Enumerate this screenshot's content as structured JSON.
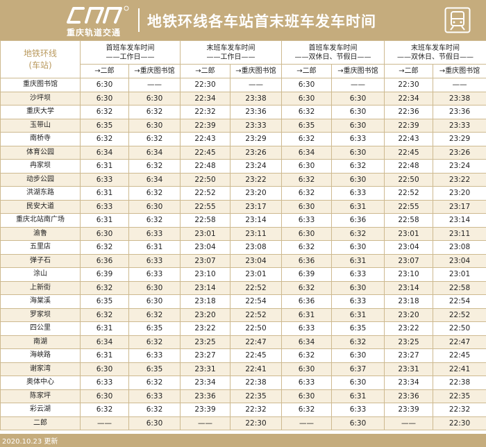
{
  "header": {
    "logo_text": "重庆轨道交通",
    "logo_icon": "cr-rail-logo",
    "title": "地铁环线各车站首末班车发车时间",
    "metro_icon": "metro-train-icon"
  },
  "table": {
    "corner_line1": "地铁环线",
    "corner_line2": "(车站)",
    "groups": [
      {
        "line1": "首班车发车时间",
        "line2": "——工作日——"
      },
      {
        "line1": "末班车发车时间",
        "line2": "——工作日——"
      },
      {
        "line1": "首班车发车时间",
        "line2": "——双休日、节假日——"
      },
      {
        "line1": "末班车发车时间",
        "line2": "——双休日、节假日——"
      }
    ],
    "dir_a": "→二郎",
    "dir_b": "→重庆图书馆",
    "rows": [
      [
        "重庆图书馆",
        "6:30",
        "——",
        "22:30",
        "——",
        "6:30",
        "——",
        "22:30",
        "——"
      ],
      [
        "沙坪坝",
        "6:30",
        "6:30",
        "22:34",
        "23:38",
        "6:30",
        "6:30",
        "22:34",
        "23:38"
      ],
      [
        "重庆大学",
        "6:32",
        "6:32",
        "22:32",
        "23:36",
        "6:32",
        "6:30",
        "22:36",
        "23:36"
      ],
      [
        "玉带山",
        "6:35",
        "6:30",
        "22:39",
        "23:33",
        "6:35",
        "6:30",
        "22:39",
        "23:33"
      ],
      [
        "南桥寺",
        "6:32",
        "6:32",
        "22:43",
        "23:29",
        "6:32",
        "6:33",
        "22:43",
        "23:29"
      ],
      [
        "体育公园",
        "6:34",
        "6:34",
        "22:45",
        "23:26",
        "6:34",
        "6:30",
        "22:45",
        "23:26"
      ],
      [
        "冉家坝",
        "6:31",
        "6:32",
        "22:48",
        "23:24",
        "6:30",
        "6:32",
        "22:48",
        "23:24"
      ],
      [
        "动步公园",
        "6:33",
        "6:34",
        "22:50",
        "23:22",
        "6:32",
        "6:30",
        "22:50",
        "23:22"
      ],
      [
        "洪湖东路",
        "6:31",
        "6:32",
        "22:52",
        "23:20",
        "6:32",
        "6:33",
        "22:52",
        "23:20"
      ],
      [
        "民安大道",
        "6:33",
        "6:30",
        "22:55",
        "23:17",
        "6:30",
        "6:31",
        "22:55",
        "23:17"
      ],
      [
        "重庆北站南广场",
        "6:31",
        "6:32",
        "22:58",
        "23:14",
        "6:33",
        "6:36",
        "22:58",
        "23:14"
      ],
      [
        "渝鲁",
        "6:30",
        "6:33",
        "23:01",
        "23:11",
        "6:30",
        "6:32",
        "23:01",
        "23:11"
      ],
      [
        "五里店",
        "6:32",
        "6:31",
        "23:04",
        "23:08",
        "6:32",
        "6:30",
        "23:04",
        "23:08"
      ],
      [
        "弹子石",
        "6:36",
        "6:33",
        "23:07",
        "23:04",
        "6:36",
        "6:31",
        "23:07",
        "23:04"
      ],
      [
        "涂山",
        "6:39",
        "6:33",
        "23:10",
        "23:01",
        "6:39",
        "6:33",
        "23:10",
        "23:01"
      ],
      [
        "上新街",
        "6:32",
        "6:30",
        "23:14",
        "22:52",
        "6:32",
        "6:30",
        "23:14",
        "22:58"
      ],
      [
        "海棠溪",
        "6:35",
        "6:30",
        "23:18",
        "22:54",
        "6:36",
        "6:33",
        "23:18",
        "22:54"
      ],
      [
        "罗家坝",
        "6:32",
        "6:32",
        "23:20",
        "22:52",
        "6:31",
        "6:31",
        "23:20",
        "22:52"
      ],
      [
        "四公里",
        "6:31",
        "6:35",
        "23:22",
        "22:50",
        "6:33",
        "6:35",
        "23:22",
        "22:50"
      ],
      [
        "南湖",
        "6:34",
        "6:32",
        "23:25",
        "22:47",
        "6:34",
        "6:32",
        "23:25",
        "22:47"
      ],
      [
        "海峡路",
        "6:31",
        "6:33",
        "23:27",
        "22:45",
        "6:32",
        "6:30",
        "23:27",
        "22:45"
      ],
      [
        "谢家湾",
        "6:30",
        "6:35",
        "23:31",
        "22:41",
        "6:30",
        "6:37",
        "23:31",
        "22:41"
      ],
      [
        "奥体中心",
        "6:33",
        "6:32",
        "23:34",
        "22:38",
        "6:33",
        "6:30",
        "23:34",
        "22:38"
      ],
      [
        "陈家坪",
        "6:30",
        "6:33",
        "23:36",
        "22:35",
        "6:30",
        "6:31",
        "23:36",
        "22:35"
      ],
      [
        "彩云湖",
        "6:32",
        "6:32",
        "23:39",
        "22:32",
        "6:32",
        "6:33",
        "23:39",
        "22:32"
      ],
      [
        "二郎",
        "——",
        "6:30",
        "——",
        "22:30",
        "——",
        "6:30",
        "——",
        "22:30"
      ]
    ]
  },
  "footer": {
    "updated": "2020.10.23 更新"
  },
  "colors": {
    "gold": "#c5ac7d",
    "border": "#cdb98f",
    "stripe": "#f7efde",
    "corner_text": "#b9995d"
  }
}
